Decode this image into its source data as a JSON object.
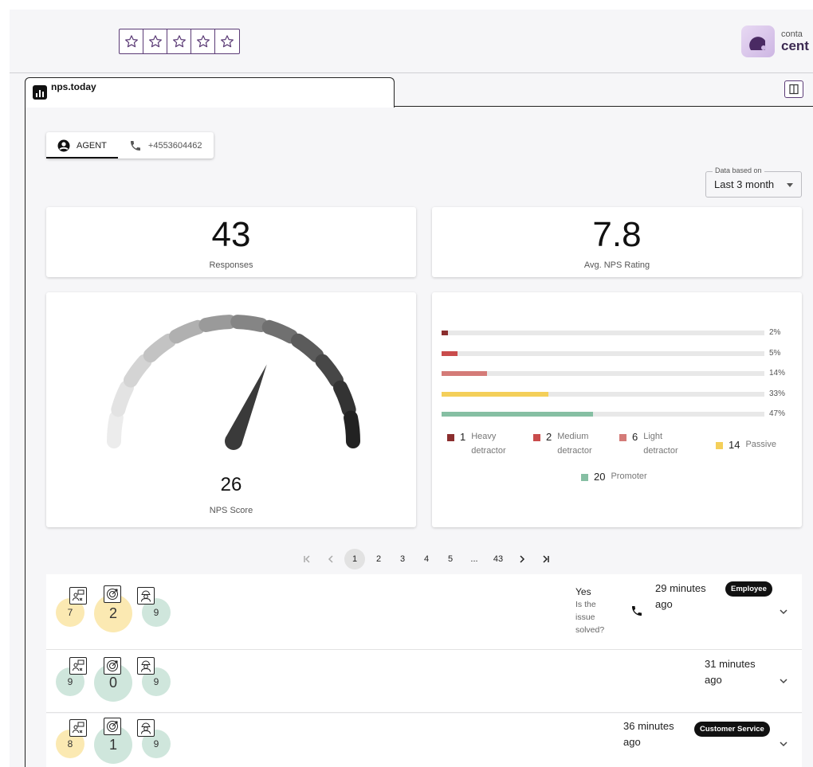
{
  "rating": {
    "stars": 5,
    "color": "#5b3b76"
  },
  "brand": {
    "line1": "conta",
    "line2": "cent"
  },
  "tab": {
    "title": "nps.today"
  },
  "toggle": {
    "agent_label": "AGENT",
    "phone_label": "+4553604462"
  },
  "period": {
    "label": "Data based on",
    "value": "Last 3 month"
  },
  "stats": {
    "responses": {
      "value": "43",
      "label": "Responses"
    },
    "avg_rating": {
      "value": "7.8",
      "label": "Avg. NPS Rating"
    }
  },
  "nps": {
    "value": "26",
    "label": "NPS Score",
    "score": 26
  },
  "chart_data": {
    "type": "bar",
    "orientation": "horizontal",
    "categories": [
      "Heavy detractor",
      "Medium detractor",
      "Light detractor",
      "Passive",
      "Promoter"
    ],
    "values": [
      2,
      5,
      14,
      33,
      47
    ],
    "value_labels": [
      "2%",
      "5%",
      "14%",
      "33%",
      "47%"
    ],
    "counts": [
      1,
      2,
      6,
      14,
      20
    ],
    "colors": [
      "#8b2e2e",
      "#c94c4c",
      "#d47b78",
      "#f4cf5a",
      "#86bfa3"
    ],
    "xlim": [
      0,
      100
    ]
  },
  "legend": [
    {
      "count": "1",
      "name": "Heavy detractor",
      "line1": "Heavy",
      "line2": "detractor"
    },
    {
      "count": "2",
      "name": "Medium detractor",
      "line1": "Medium",
      "line2": "detractor"
    },
    {
      "count": "6",
      "name": "Light detractor",
      "line1": "Light",
      "line2": "detractor"
    },
    {
      "count": "14",
      "name": "Passive",
      "line1": "Passive",
      "line2": ""
    },
    {
      "count": "20",
      "name": "Promoter",
      "line1": "Promoter",
      "line2": ""
    }
  ],
  "pagination": {
    "pages": [
      "1",
      "2",
      "3",
      "4",
      "5",
      "...",
      "43"
    ],
    "current": "1"
  },
  "responses": [
    {
      "left_score": "7",
      "main_score": "2",
      "right_score": "9",
      "solved_answer": "Yes",
      "solved_question": [
        "Is the",
        "issue",
        "solved?"
      ],
      "time_line1": "29 minutes",
      "time_line2": "ago",
      "badge": "Employee"
    },
    {
      "left_score": "9",
      "main_score": "0",
      "right_score": "9",
      "time_line1": "31 minutes",
      "time_line2": "ago"
    },
    {
      "left_score": "8",
      "main_score": "1",
      "right_score": "9",
      "time_line1": "36 minutes",
      "time_line2": "ago",
      "badge": "Customer Service"
    }
  ]
}
